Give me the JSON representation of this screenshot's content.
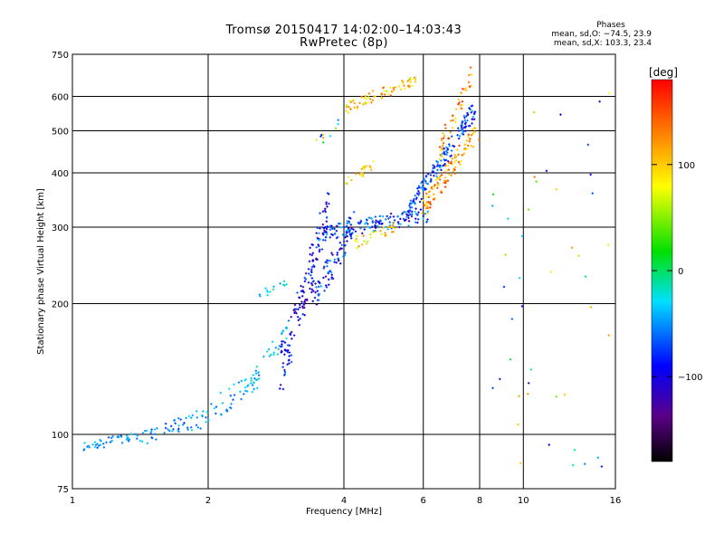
{
  "header": {
    "title": "Tromsø 20150417 14:02:00–14:03:43",
    "subtitle": "RwPretec (8p)"
  },
  "stats": {
    "heading": "Phases",
    "line_o": "mean, sd,O: −74.5, 23.9",
    "line_x": "mean, sd,X: 103.3, 23.4"
  },
  "colorbar": {
    "label": "[deg]",
    "ticks": [
      {
        "value": 100,
        "label": "100"
      },
      {
        "value": 0,
        "label": "0"
      },
      {
        "value": -100,
        "label": "−100"
      }
    ],
    "range": [
      -180,
      180
    ]
  },
  "chart_data": {
    "type": "scatter",
    "title": "Tromsø 20150417 14:02:00–14:03:43",
    "subtitle": "RwPretec (8p)",
    "xlabel": "Frequency [MHz]",
    "ylabel": "Stationary phase Virtual Height [km]",
    "xscale": "log",
    "yscale": "log",
    "xlim": [
      1,
      16
    ],
    "ylim": [
      75,
      750
    ],
    "xticks": [
      1,
      2,
      4,
      6,
      8,
      10,
      16
    ],
    "yticks": [
      75,
      100,
      200,
      300,
      400,
      500,
      600,
      750
    ],
    "grid": true,
    "color_label": "[deg]",
    "segments": [
      {
        "f0": 1.03,
        "f1": 1.5,
        "h0": 93,
        "h1": 101,
        "spread": 0.025,
        "n": 45,
        "phase": [
          -70,
          -30
        ]
      },
      {
        "f0": 1.4,
        "f1": 1.85,
        "h0": 97,
        "h1": 108,
        "spread": 0.04,
        "n": 35,
        "phase": [
          -80,
          -30
        ]
      },
      {
        "f0": 1.8,
        "f1": 2.6,
        "h0": 105,
        "h1": 135,
        "spread": 0.06,
        "n": 55,
        "phase": [
          -70,
          -20
        ]
      },
      {
        "f0": 2.4,
        "f1": 3.0,
        "h0": 125,
        "h1": 175,
        "spread": 0.05,
        "n": 35,
        "phase": [
          -60,
          -10
        ]
      },
      {
        "f0": 2.6,
        "f1": 3.0,
        "h0": 210,
        "h1": 225,
        "spread": 0.02,
        "n": 14,
        "phase": [
          -50,
          -10
        ]
      },
      {
        "f0": 2.9,
        "f1": 3.7,
        "h0": 140,
        "h1": 330,
        "spread": 0.12,
        "n": 150,
        "phase": [
          -130,
          -60
        ]
      },
      {
        "f0": 3.4,
        "f1": 4.2,
        "h0": 200,
        "h1": 310,
        "spread": 0.08,
        "n": 90,
        "phase": [
          -120,
          -40
        ]
      },
      {
        "f0": 3.5,
        "f1": 6.2,
        "h0": 290,
        "h1": 320,
        "spread": 0.04,
        "n": 140,
        "phase": [
          -120,
          -30
        ]
      },
      {
        "f0": 4.2,
        "f1": 5.2,
        "h0": 275,
        "h1": 300,
        "spread": 0.03,
        "n": 30,
        "phase": [
          60,
          130
        ]
      },
      {
        "f0": 5.5,
        "f1": 7.8,
        "h0": 320,
        "h1": 560,
        "spread": 0.05,
        "n": 160,
        "phase": [
          -110,
          -40
        ]
      },
      {
        "f0": 6.0,
        "f1": 7.9,
        "h0": 330,
        "h1": 500,
        "spread": 0.05,
        "n": 110,
        "phase": [
          80,
          160
        ]
      },
      {
        "f0": 4.0,
        "f1": 5.8,
        "h0": 560,
        "h1": 660,
        "spread": 0.03,
        "n": 70,
        "phase": [
          60,
          140
        ]
      },
      {
        "f0": 6.5,
        "f1": 7.7,
        "h0": 450,
        "h1": 670,
        "spread": 0.06,
        "n": 50,
        "phase": [
          80,
          170
        ]
      },
      {
        "f0": 4.0,
        "f1": 4.7,
        "h0": 380,
        "h1": 420,
        "spread": 0.03,
        "n": 20,
        "phase": [
          60,
          130
        ]
      },
      {
        "f0": 3.5,
        "f1": 4.0,
        "h0": 470,
        "h1": 520,
        "spread": 0.04,
        "n": 10,
        "phase": [
          -90,
          120
        ]
      },
      {
        "f0": 8.5,
        "f1": 15.5,
        "h0": 80,
        "h1": 700,
        "spread": 0.0,
        "n": 45,
        "phase": [
          -130,
          130
        ]
      }
    ]
  }
}
